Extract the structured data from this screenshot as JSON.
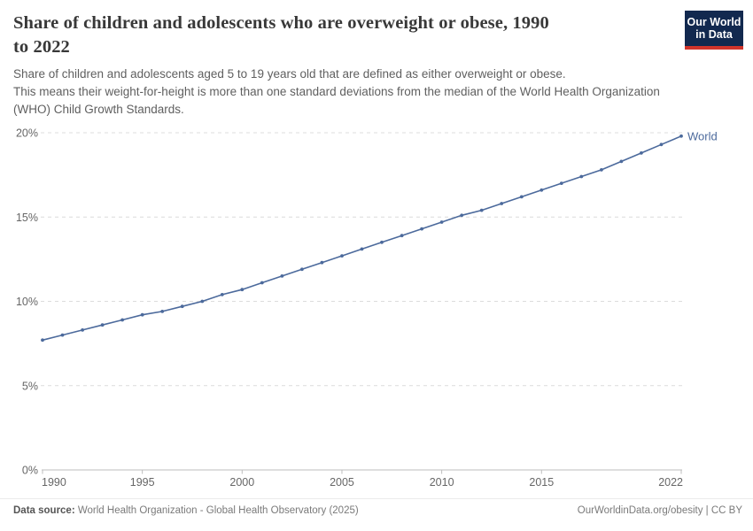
{
  "header": {
    "title_line1": "Share of children and adolescents who are overweight or obese, 1990",
    "title_line2": "to 2022",
    "subtitle_lines": [
      "Share of children and adolescents aged 5 to 19 years old that are defined as either overweight or obese.",
      "This means their weight-for-height is more than one standard deviations from the median of the World Health Organization",
      "(WHO) Child Growth Standards."
    ]
  },
  "logo": {
    "line1": "Our World",
    "line2": "in Data",
    "bg_color": "#12294f",
    "accent_color": "#d1342b"
  },
  "chart_data": {
    "type": "line",
    "title": "Share of children and adolescents who are overweight or obese, 1990 to 2022",
    "x": [
      1990,
      1991,
      1992,
      1993,
      1994,
      1995,
      1996,
      1997,
      1998,
      1999,
      2000,
      2001,
      2002,
      2003,
      2004,
      2005,
      2006,
      2007,
      2008,
      2009,
      2010,
      2011,
      2012,
      2013,
      2014,
      2015,
      2016,
      2017,
      2018,
      2019,
      2020,
      2021,
      2022
    ],
    "series": [
      {
        "name": "World",
        "color": "#4c6a9c",
        "values": [
          7.7,
          8.0,
          8.3,
          8.6,
          8.9,
          9.2,
          9.4,
          9.7,
          10.0,
          10.4,
          10.7,
          11.1,
          11.5,
          11.9,
          12.3,
          12.7,
          13.1,
          13.5,
          13.9,
          14.3,
          14.7,
          15.1,
          15.4,
          15.8,
          16.2,
          16.6,
          17.0,
          17.4,
          17.8,
          18.3,
          18.8,
          19.3,
          19.8
        ]
      }
    ],
    "xticks": [
      1990,
      1995,
      2000,
      2005,
      2010,
      2015,
      2022
    ],
    "yticks": [
      0,
      5,
      10,
      15,
      20
    ],
    "ytick_suffix": "%",
    "xlim": [
      1990,
      2022
    ],
    "ylim": [
      0,
      20
    ],
    "grid": "horizontal-dashed",
    "grid_color": "#dcdcdc",
    "axis_color": "#bdbdbd",
    "tick_label_color": "#666666",
    "legend_position": "end-of-line"
  },
  "footer": {
    "source_label": "Data source:",
    "source_text": " World Health Organization - Global Health Observatory (2025)",
    "link_text": "OurWorldinData.org/obesity | CC BY"
  }
}
